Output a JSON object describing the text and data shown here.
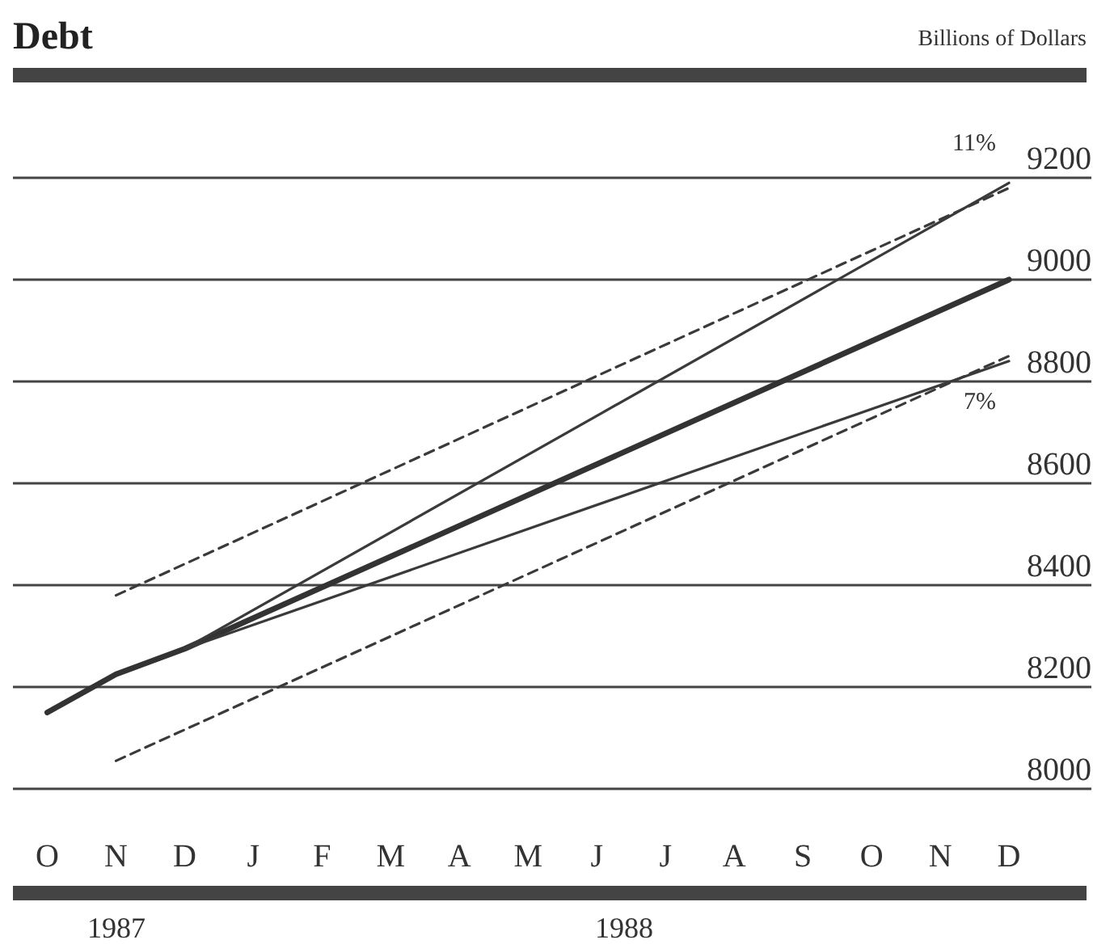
{
  "chart_data": {
    "type": "line",
    "title": "Debt",
    "ylabel": "Billions of Dollars",
    "categories": [
      "O",
      "N",
      "D",
      "J",
      "F",
      "M",
      "A",
      "M",
      "J",
      "J",
      "A",
      "S",
      "O",
      "N",
      "D"
    ],
    "ylim": [
      8000,
      9200
    ],
    "yticks": [
      8000,
      8200,
      8400,
      8600,
      8800,
      9000,
      9200
    ],
    "grid": "y",
    "marker": "none",
    "series": [
      {
        "color": "#333333",
        "line_style": "solid",
        "values": [
          8150,
          8225,
          8275,
          null,
          null,
          null,
          null,
          null,
          null,
          null,
          null,
          null,
          null,
          null,
          9000
        ]
      },
      {
        "color": "#3a3a3a",
        "line_style": "solid",
        "values": [
          null,
          null,
          8275,
          null,
          null,
          null,
          null,
          null,
          null,
          null,
          null,
          null,
          null,
          null,
          9190
        ]
      },
      {
        "color": "#3a3a3a",
        "line_style": "solid",
        "values": [
          null,
          null,
          8275,
          null,
          null,
          null,
          null,
          null,
          null,
          null,
          null,
          null,
          null,
          null,
          8840
        ]
      },
      {
        "color": "#3a3a3a",
        "line_style": "dashed",
        "values": [
          null,
          8380,
          null,
          null,
          null,
          null,
          null,
          null,
          null,
          null,
          null,
          null,
          null,
          null,
          9180
        ]
      },
      {
        "color": "#3a3a3a",
        "line_style": "dashed",
        "values": [
          null,
          8055,
          null,
          null,
          null,
          null,
          null,
          null,
          null,
          null,
          null,
          null,
          null,
          null,
          8850
        ]
      }
    ],
    "annotations": [
      "11%",
      "7%",
      "1987",
      "1988"
    ]
  }
}
